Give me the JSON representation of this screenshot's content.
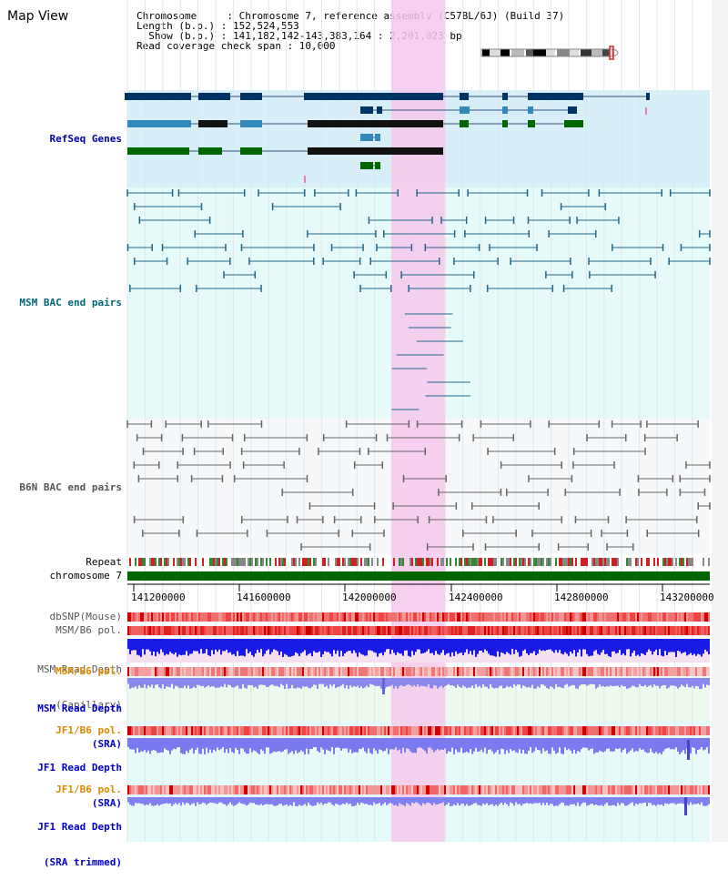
{
  "page": {
    "title": "Map View",
    "info": [
      "Chromosome     : Chromosome 7, reference assembly (C57BL/6J) (Build 37)",
      "Length (b.p.) : 152,524,553",
      "  Show (b.p.) : 141,182,142-143,383,164 : 2,201,023 bp",
      "Read coverage check span : 10,000"
    ]
  },
  "tracks": {
    "refseq": "RefSeq Genes",
    "msm_bac": "MSM BAC end pairs",
    "b6n_bac": "B6N BAC end pairs",
    "repeat": "Repeat",
    "chromosome": "chromosome 7",
    "dbsnp": "dbSNP(Mouse)",
    "msm_b6_pol": "MSM/B6 pol.",
    "msm_depth_cap_1": "MSM Read Depth",
    "msm_depth_cap_2": "(Capillary)",
    "msm_b6_pol2": "MSM/B6 pol.",
    "msm_depth_sra_1": "MSM Read Depth",
    "msm_depth_sra_2": "(SRA)",
    "jf1_pol": "JF1/B6 pol.",
    "jf1_depth_1": "JF1 Read Depth",
    "jf1_depth_2": "(SRA)",
    "jf1_pol2": "JF1/B6 pol.",
    "jf1_trim_1": "JF1 Read Depth",
    "jf1_trim_2": "(SRA trimmed)"
  },
  "axis": {
    "ticks": [
      "141200000",
      "141600000",
      "142000000",
      "142400000",
      "142800000",
      "143200000"
    ]
  },
  "colors": {
    "refseq_label": "#0000aa",
    "msm_label": "#006677",
    "b6n_label": "#555555",
    "orange_label": "#dd8800",
    "blue_label": "#0000cc",
    "highlight": "#f6c8ec",
    "refseq_bg": "#d8eef8",
    "msm_bg": "#e6fafa",
    "sra_bg": "#eefaee",
    "gene_dark": "#003366",
    "gene_mid": "#3388bb",
    "gene_green": "#006600",
    "chromosome_bar": "#006600"
  }
}
